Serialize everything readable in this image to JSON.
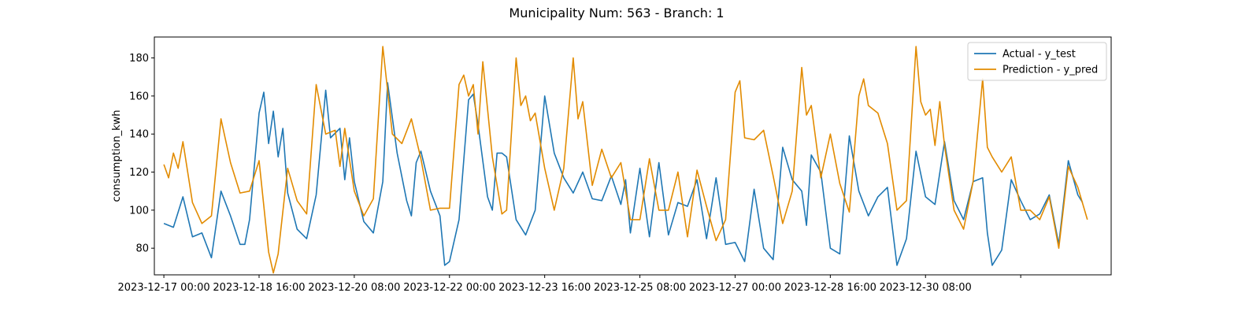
{
  "chart_data": {
    "type": "line",
    "title": "Municipality Num: 563 - Branch: 1",
    "xlabel": "",
    "ylabel": "consumption_kwh",
    "ylim": [
      66,
      191
    ],
    "yticks": [
      80,
      100,
      120,
      140,
      160,
      180
    ],
    "xlim": [
      "2023-12-16 20:00",
      "2024-01-02 14:00"
    ],
    "xticks": [
      "2023-12-17 00:00",
      "2023-12-18 16:00",
      "2023-12-20 08:00",
      "2023-12-22 00:00",
      "2023-12-23 16:00",
      "2023-12-25 08:00",
      "2023-12-27 00:00",
      "2023-12-28 16:00",
      "2023-12-30 08:00",
      "2024-01-01 00:00"
    ],
    "xtick_labels": [
      "2023-12-17 00:00",
      "2023-12-18 16:00",
      "2023-12-20 08:00",
      "2023-12-22 00:00",
      "2023-12-23 16:00",
      "2023-12-25 08:00",
      "2023-12-27 00:00",
      "2023-12-28 16:00",
      "2023-12-30 08:00",
      ""
    ],
    "grid": false,
    "legend_position": "top-right",
    "series": [
      {
        "name": "Actual - y_test",
        "color": "#1f77b4",
        "points": [
          [
            "2023-12-17 00:00",
            93
          ],
          [
            "2023-12-17 04:00",
            91
          ],
          [
            "2023-12-17 08:00",
            107
          ],
          [
            "2023-12-17 12:00",
            86
          ],
          [
            "2023-12-17 16:00",
            88
          ],
          [
            "2023-12-17 20:00",
            75
          ],
          [
            "2023-12-18 00:00",
            110
          ],
          [
            "2023-12-18 04:00",
            97
          ],
          [
            "2023-12-18 08:00",
            82
          ],
          [
            "2023-12-18 10:00",
            82
          ],
          [
            "2023-12-18 12:00",
            95
          ],
          [
            "2023-12-18 16:00",
            151
          ],
          [
            "2023-12-18 18:00",
            162
          ],
          [
            "2023-12-18 20:00",
            135
          ],
          [
            "2023-12-18 22:00",
            152
          ],
          [
            "2023-12-19 00:00",
            128
          ],
          [
            "2023-12-19 02:00",
            143
          ],
          [
            "2023-12-19 04:00",
            109
          ],
          [
            "2023-12-19 08:00",
            90
          ],
          [
            "2023-12-19 12:00",
            85
          ],
          [
            "2023-12-19 16:00",
            108
          ],
          [
            "2023-12-19 20:00",
            163
          ],
          [
            "2023-12-19 22:00",
            138
          ],
          [
            "2023-12-20 02:00",
            143
          ],
          [
            "2023-12-20 04:00",
            116
          ],
          [
            "2023-12-20 06:00",
            138
          ],
          [
            "2023-12-20 08:00",
            115
          ],
          [
            "2023-12-20 12:00",
            94
          ],
          [
            "2023-12-20 16:00",
            88
          ],
          [
            "2023-12-20 20:00",
            115
          ],
          [
            "2023-12-20 22:00",
            167
          ],
          [
            "2023-12-21 02:00",
            130
          ],
          [
            "2023-12-21 06:00",
            105
          ],
          [
            "2023-12-21 08:00",
            97
          ],
          [
            "2023-12-21 10:00",
            125
          ],
          [
            "2023-12-21 12:00",
            131
          ],
          [
            "2023-12-21 16:00",
            110
          ],
          [
            "2023-12-21 20:00",
            97
          ],
          [
            "2023-12-21 22:00",
            71
          ],
          [
            "2023-12-22 00:00",
            73
          ],
          [
            "2023-12-22 04:00",
            95
          ],
          [
            "2023-12-22 08:00",
            158
          ],
          [
            "2023-12-22 10:00",
            161
          ],
          [
            "2023-12-22 12:00",
            145
          ],
          [
            "2023-12-22 16:00",
            107
          ],
          [
            "2023-12-22 18:00",
            100
          ],
          [
            "2023-12-22 20:00",
            130
          ],
          [
            "2023-12-22 22:00",
            130
          ],
          [
            "2023-12-23 00:00",
            128
          ],
          [
            "2023-12-23 04:00",
            95
          ],
          [
            "2023-12-23 08:00",
            87
          ],
          [
            "2023-12-23 12:00",
            100
          ],
          [
            "2023-12-23 16:00",
            160
          ],
          [
            "2023-12-23 20:00",
            130
          ],
          [
            "2023-12-24 00:00",
            117
          ],
          [
            "2023-12-24 04:00",
            109
          ],
          [
            "2023-12-24 08:00",
            120
          ],
          [
            "2023-12-24 12:00",
            106
          ],
          [
            "2023-12-24 16:00",
            105
          ],
          [
            "2023-12-24 20:00",
            118
          ],
          [
            "2023-12-25 00:00",
            103
          ],
          [
            "2023-12-25 02:00",
            116
          ],
          [
            "2023-12-25 04:00",
            88
          ],
          [
            "2023-12-25 08:00",
            122
          ],
          [
            "2023-12-25 12:00",
            86
          ],
          [
            "2023-12-25 16:00",
            125
          ],
          [
            "2023-12-25 20:00",
            87
          ],
          [
            "2023-12-26 00:00",
            104
          ],
          [
            "2023-12-26 04:00",
            102
          ],
          [
            "2023-12-26 08:00",
            116
          ],
          [
            "2023-12-26 12:00",
            85
          ],
          [
            "2023-12-26 16:00",
            117
          ],
          [
            "2023-12-26 20:00",
            82
          ],
          [
            "2023-12-27 00:00",
            83
          ],
          [
            "2023-12-27 04:00",
            73
          ],
          [
            "2023-12-27 08:00",
            111
          ],
          [
            "2023-12-27 12:00",
            80
          ],
          [
            "2023-12-27 16:00",
            74
          ],
          [
            "2023-12-27 20:00",
            133
          ],
          [
            "2023-12-28 00:00",
            116
          ],
          [
            "2023-12-28 04:00",
            110
          ],
          [
            "2023-12-28 06:00",
            92
          ],
          [
            "2023-12-28 08:00",
            129
          ],
          [
            "2023-12-28 12:00",
            120
          ],
          [
            "2023-12-28 16:00",
            80
          ],
          [
            "2023-12-28 20:00",
            77
          ],
          [
            "2023-12-29 00:00",
            139
          ],
          [
            "2023-12-29 04:00",
            110
          ],
          [
            "2023-12-29 08:00",
            97
          ],
          [
            "2023-12-29 12:00",
            107
          ],
          [
            "2023-12-29 16:00",
            112
          ],
          [
            "2023-12-29 20:00",
            71
          ],
          [
            "2023-12-30 00:00",
            85
          ],
          [
            "2023-12-30 04:00",
            131
          ],
          [
            "2023-12-30 08:00",
            107
          ],
          [
            "2023-12-30 12:00",
            103
          ],
          [
            "2023-12-30 16:00",
            136
          ],
          [
            "2023-12-30 20:00",
            105
          ],
          [
            "2023-12-31 00:00",
            95
          ],
          [
            "2023-12-31 04:00",
            115
          ],
          [
            "2023-12-31 08:00",
            117
          ],
          [
            "2023-12-31 10:00",
            88
          ],
          [
            "2023-12-31 12:00",
            71
          ],
          [
            "2023-12-31 16:00",
            79
          ],
          [
            "2023-12-31 20:00",
            116
          ],
          [
            "2024-01-01 00:00",
            105
          ],
          [
            "2024-01-01 04:00",
            95
          ],
          [
            "2024-01-01 08:00",
            98
          ],
          [
            "2024-01-01 12:00",
            108
          ],
          [
            "2024-01-01 16:00",
            82
          ],
          [
            "2024-01-01 20:00",
            126
          ],
          [
            "2024-01-02 00:00",
            108
          ],
          [
            "2024-01-02 02:00",
            104
          ]
        ]
      },
      {
        "name": "Prediction - y_pred",
        "color": "#e28b00",
        "points": [
          [
            "2023-12-17 00:00",
            124
          ],
          [
            "2023-12-17 02:00",
            117
          ],
          [
            "2023-12-17 04:00",
            130
          ],
          [
            "2023-12-17 06:00",
            122
          ],
          [
            "2023-12-17 08:00",
            136
          ],
          [
            "2023-12-17 12:00",
            104
          ],
          [
            "2023-12-17 16:00",
            93
          ],
          [
            "2023-12-17 20:00",
            97
          ],
          [
            "2023-12-18 00:00",
            148
          ],
          [
            "2023-12-18 04:00",
            125
          ],
          [
            "2023-12-18 08:00",
            109
          ],
          [
            "2023-12-18 12:00",
            110
          ],
          [
            "2023-12-18 16:00",
            126
          ],
          [
            "2023-12-18 20:00",
            78
          ],
          [
            "2023-12-18 22:00",
            67
          ],
          [
            "2023-12-19 00:00",
            77
          ],
          [
            "2023-12-19 04:00",
            122
          ],
          [
            "2023-12-19 08:00",
            105
          ],
          [
            "2023-12-19 12:00",
            98
          ],
          [
            "2023-12-19 16:00",
            166
          ],
          [
            "2023-12-19 20:00",
            140
          ],
          [
            "2023-12-20 00:00",
            142
          ],
          [
            "2023-12-20 02:00",
            123
          ],
          [
            "2023-12-20 04:00",
            143
          ],
          [
            "2023-12-20 08:00",
            110
          ],
          [
            "2023-12-20 12:00",
            97
          ],
          [
            "2023-12-20 16:00",
            106
          ],
          [
            "2023-12-20 20:00",
            186
          ],
          [
            "2023-12-21 00:00",
            140
          ],
          [
            "2023-12-21 04:00",
            135
          ],
          [
            "2023-12-21 08:00",
            148
          ],
          [
            "2023-12-21 12:00",
            127
          ],
          [
            "2023-12-21 16:00",
            100
          ],
          [
            "2023-12-21 20:00",
            101
          ],
          [
            "2023-12-22 00:00",
            101
          ],
          [
            "2023-12-22 04:00",
            166
          ],
          [
            "2023-12-22 06:00",
            171
          ],
          [
            "2023-12-22 08:00",
            160
          ],
          [
            "2023-12-22 10:00",
            166
          ],
          [
            "2023-12-22 12:00",
            140
          ],
          [
            "2023-12-22 14:00",
            178
          ],
          [
            "2023-12-22 18:00",
            128
          ],
          [
            "2023-12-22 22:00",
            98
          ],
          [
            "2023-12-23 00:00",
            100
          ],
          [
            "2023-12-23 04:00",
            180
          ],
          [
            "2023-12-23 06:00",
            155
          ],
          [
            "2023-12-23 08:00",
            160
          ],
          [
            "2023-12-23 10:00",
            147
          ],
          [
            "2023-12-23 12:00",
            151
          ],
          [
            "2023-12-23 16:00",
            122
          ],
          [
            "2023-12-23 20:00",
            100
          ],
          [
            "2023-12-24 00:00",
            122
          ],
          [
            "2023-12-24 04:00",
            180
          ],
          [
            "2023-12-24 06:00",
            148
          ],
          [
            "2023-12-24 08:00",
            157
          ],
          [
            "2023-12-24 12:00",
            113
          ],
          [
            "2023-12-24 16:00",
            132
          ],
          [
            "2023-12-24 20:00",
            117
          ],
          [
            "2023-12-25 00:00",
            125
          ],
          [
            "2023-12-25 04:00",
            95
          ],
          [
            "2023-12-25 08:00",
            95
          ],
          [
            "2023-12-25 12:00",
            127
          ],
          [
            "2023-12-25 16:00",
            100
          ],
          [
            "2023-12-25 20:00",
            100
          ],
          [
            "2023-12-26 00:00",
            120
          ],
          [
            "2023-12-26 04:00",
            86
          ],
          [
            "2023-12-26 08:00",
            121
          ],
          [
            "2023-12-26 12:00",
            102
          ],
          [
            "2023-12-26 16:00",
            84
          ],
          [
            "2023-12-26 20:00",
            95
          ],
          [
            "2023-12-27 00:00",
            162
          ],
          [
            "2023-12-27 02:00",
            168
          ],
          [
            "2023-12-27 04:00",
            138
          ],
          [
            "2023-12-27 08:00",
            137
          ],
          [
            "2023-12-27 12:00",
            142
          ],
          [
            "2023-12-27 16:00",
            118
          ],
          [
            "2023-12-27 20:00",
            93
          ],
          [
            "2023-12-28 00:00",
            110
          ],
          [
            "2023-12-28 04:00",
            175
          ],
          [
            "2023-12-28 06:00",
            150
          ],
          [
            "2023-12-28 08:00",
            155
          ],
          [
            "2023-12-28 12:00",
            117
          ],
          [
            "2023-12-28 16:00",
            140
          ],
          [
            "2023-12-28 20:00",
            114
          ],
          [
            "2023-12-29 00:00",
            99
          ],
          [
            "2023-12-29 04:00",
            160
          ],
          [
            "2023-12-29 06:00",
            169
          ],
          [
            "2023-12-29 08:00",
            155
          ],
          [
            "2023-12-29 12:00",
            151
          ],
          [
            "2023-12-29 16:00",
            135
          ],
          [
            "2023-12-29 20:00",
            100
          ],
          [
            "2023-12-30 00:00",
            105
          ],
          [
            "2023-12-30 04:00",
            186
          ],
          [
            "2023-12-30 06:00",
            157
          ],
          [
            "2023-12-30 08:00",
            150
          ],
          [
            "2023-12-30 10:00",
            153
          ],
          [
            "2023-12-30 12:00",
            134
          ],
          [
            "2023-12-30 14:00",
            157
          ],
          [
            "2023-12-30 16:00",
            134
          ],
          [
            "2023-12-30 20:00",
            100
          ],
          [
            "2023-12-31 00:00",
            90
          ],
          [
            "2023-12-31 04:00",
            115
          ],
          [
            "2023-12-31 08:00",
            169
          ],
          [
            "2023-12-31 10:00",
            133
          ],
          [
            "2023-12-31 12:00",
            128
          ],
          [
            "2023-12-31 16:00",
            120
          ],
          [
            "2023-12-31 20:00",
            128
          ],
          [
            "2024-01-01 00:00",
            100
          ],
          [
            "2024-01-01 04:00",
            100
          ],
          [
            "2024-01-01 08:00",
            95
          ],
          [
            "2024-01-01 12:00",
            107
          ],
          [
            "2024-01-01 16:00",
            80
          ],
          [
            "2024-01-01 20:00",
            123
          ],
          [
            "2024-01-02 00:00",
            112
          ],
          [
            "2024-01-02 04:00",
            95
          ]
        ]
      }
    ]
  }
}
